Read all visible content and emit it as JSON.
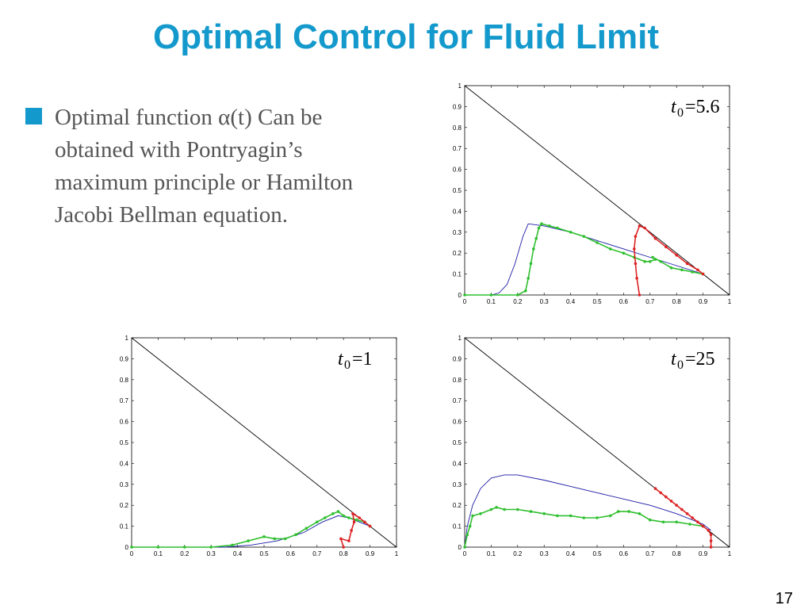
{
  "slide": {
    "title": "Optimal Control for Fluid Limit",
    "page_number": "17",
    "accent_color": "#1499cc"
  },
  "bullets": [
    {
      "text": "Optimal function α(t) Can be obtained with Pontryagin’s maximum principle or Hamilton Jacobi Bellman equation."
    }
  ],
  "chart_data": [
    {
      "type": "line",
      "label_t": "t",
      "label_sub": "0",
      "label_value": "=5.6",
      "xlim": [
        0,
        1
      ],
      "ylim": [
        0,
        1
      ],
      "x_ticks": [
        "0",
        "0.1",
        "0.2",
        "0.3",
        "0.4",
        "0.5",
        "0.6",
        "0.7",
        "0.8",
        "0.9",
        "1"
      ],
      "y_ticks": [
        "0",
        "0.1",
        "0.2",
        "0.3",
        "0.4",
        "0.5",
        "0.6",
        "0.7",
        "0.8",
        "0.9",
        "1"
      ],
      "series": [
        {
          "color": "#000000",
          "style": "line",
          "points": [
            [
              0,
              1
            ],
            [
              1,
              0
            ]
          ]
        },
        {
          "color": "#1a1aa6",
          "style": "line",
          "points": [
            [
              0,
              0
            ],
            [
              0.1,
              0
            ],
            [
              0.13,
              0.01
            ],
            [
              0.16,
              0.05
            ],
            [
              0.19,
              0.15
            ],
            [
              0.22,
              0.28
            ],
            [
              0.24,
              0.34
            ],
            [
              0.3,
              0.33
            ],
            [
              0.4,
              0.3
            ],
            [
              0.5,
              0.26
            ],
            [
              0.6,
              0.22
            ],
            [
              0.7,
              0.18
            ],
            [
              0.8,
              0.14
            ],
            [
              0.9,
              0.1
            ]
          ]
        },
        {
          "color": "#2fbf2f",
          "style": "markers",
          "points": [
            [
              0,
              0
            ],
            [
              0.1,
              0
            ],
            [
              0.2,
              0
            ],
            [
              0.23,
              0.02
            ],
            [
              0.24,
              0.08
            ],
            [
              0.25,
              0.15
            ],
            [
              0.26,
              0.22
            ],
            [
              0.27,
              0.27
            ],
            [
              0.28,
              0.32
            ],
            [
              0.29,
              0.34
            ],
            [
              0.32,
              0.33
            ],
            [
              0.35,
              0.32
            ],
            [
              0.4,
              0.3
            ],
            [
              0.45,
              0.28
            ],
            [
              0.5,
              0.25
            ],
            [
              0.55,
              0.22
            ],
            [
              0.6,
              0.2
            ],
            [
              0.64,
              0.18
            ],
            [
              0.68,
              0.16
            ],
            [
              0.7,
              0.16
            ],
            [
              0.72,
              0.17
            ],
            [
              0.71,
              0.18
            ],
            [
              0.74,
              0.16
            ],
            [
              0.78,
              0.13
            ],
            [
              0.82,
              0.12
            ],
            [
              0.86,
              0.11
            ],
            [
              0.9,
              0.1
            ]
          ]
        },
        {
          "color": "#dd2222",
          "style": "markers",
          "points": [
            [
              0.66,
              0.0
            ],
            [
              0.65,
              0.08
            ],
            [
              0.645,
              0.15
            ],
            [
              0.64,
              0.22
            ],
            [
              0.645,
              0.28
            ],
            [
              0.66,
              0.33
            ],
            [
              0.68,
              0.32
            ],
            [
              0.72,
              0.27
            ],
            [
              0.76,
              0.23
            ],
            [
              0.8,
              0.19
            ],
            [
              0.84,
              0.15
            ],
            [
              0.88,
              0.12
            ],
            [
              0.9,
              0.1
            ]
          ]
        }
      ]
    },
    {
      "type": "line",
      "label_t": "t",
      "label_sub": "0",
      "label_value": "=1",
      "xlim": [
        0,
        1
      ],
      "ylim": [
        0,
        1
      ],
      "x_ticks": [
        "0",
        "0.1",
        "0.2",
        "0.3",
        "0.4",
        "0.5",
        "0.6",
        "0.7",
        "0.8",
        "0.9",
        "1"
      ],
      "y_ticks": [
        "0",
        "0.1",
        "0.2",
        "0.3",
        "0.4",
        "0.5",
        "0.6",
        "0.7",
        "0.8",
        "0.9",
        "1"
      ],
      "series": [
        {
          "color": "#000000",
          "style": "line",
          "points": [
            [
              0,
              1
            ],
            [
              1,
              0
            ]
          ]
        },
        {
          "color": "#1a1aa6",
          "style": "line",
          "points": [
            [
              0,
              0
            ],
            [
              0.35,
              0
            ],
            [
              0.45,
              0.01
            ],
            [
              0.55,
              0.03
            ],
            [
              0.65,
              0.07
            ],
            [
              0.72,
              0.12
            ],
            [
              0.78,
              0.15
            ],
            [
              0.82,
              0.14
            ],
            [
              0.86,
              0.12
            ],
            [
              0.9,
              0.1
            ]
          ]
        },
        {
          "color": "#2fbf2f",
          "style": "markers",
          "points": [
            [
              0,
              0
            ],
            [
              0.1,
              0
            ],
            [
              0.2,
              0
            ],
            [
              0.3,
              0
            ],
            [
              0.38,
              0.01
            ],
            [
              0.44,
              0.03
            ],
            [
              0.5,
              0.05
            ],
            [
              0.54,
              0.04
            ],
            [
              0.58,
              0.04
            ],
            [
              0.62,
              0.06
            ],
            [
              0.66,
              0.09
            ],
            [
              0.7,
              0.12
            ],
            [
              0.73,
              0.14
            ],
            [
              0.76,
              0.16
            ],
            [
              0.78,
              0.17
            ],
            [
              0.8,
              0.15
            ],
            [
              0.82,
              0.14
            ],
            [
              0.85,
              0.13
            ],
            [
              0.88,
              0.12
            ],
            [
              0.9,
              0.1
            ]
          ]
        },
        {
          "color": "#dd2222",
          "style": "markers",
          "points": [
            [
              0.8,
              0.0
            ],
            [
              0.79,
              0.04
            ],
            [
              0.82,
              0.03
            ],
            [
              0.83,
              0.08
            ],
            [
              0.84,
              0.12
            ],
            [
              0.835,
              0.16
            ],
            [
              0.86,
              0.14
            ],
            [
              0.88,
              0.12
            ],
            [
              0.9,
              0.1
            ]
          ]
        }
      ]
    },
    {
      "type": "line",
      "label_t": "t",
      "label_sub": "0",
      "label_value": "=25",
      "xlim": [
        0,
        1
      ],
      "ylim": [
        0,
        1
      ],
      "x_ticks": [
        "0",
        "0.1",
        "0.2",
        "0.3",
        "0.4",
        "0.5",
        "0.6",
        "0.7",
        "0.8",
        "0.9",
        "1"
      ],
      "y_ticks": [
        "0",
        "0.1",
        "0.2",
        "0.3",
        "0.4",
        "0.5",
        "0.6",
        "0.7",
        "0.8",
        "0.9",
        "1"
      ],
      "series": [
        {
          "color": "#000000",
          "style": "line",
          "points": [
            [
              0,
              1
            ],
            [
              1,
              0
            ]
          ]
        },
        {
          "color": "#1a1aa6",
          "style": "line",
          "points": [
            [
              0,
              0
            ],
            [
              0.01,
              0.1
            ],
            [
              0.03,
              0.2
            ],
            [
              0.06,
              0.28
            ],
            [
              0.1,
              0.33
            ],
            [
              0.15,
              0.345
            ],
            [
              0.2,
              0.345
            ],
            [
              0.3,
              0.32
            ],
            [
              0.4,
              0.29
            ],
            [
              0.5,
              0.26
            ],
            [
              0.6,
              0.23
            ],
            [
              0.7,
              0.2
            ],
            [
              0.8,
              0.16
            ],
            [
              0.9,
              0.11
            ],
            [
              0.93,
              0.08
            ]
          ]
        },
        {
          "color": "#2fbf2f",
          "style": "markers",
          "points": [
            [
              0,
              0
            ],
            [
              0.01,
              0.06
            ],
            [
              0.02,
              0.1
            ],
            [
              0.03,
              0.15
            ],
            [
              0.06,
              0.16
            ],
            [
              0.1,
              0.18
            ],
            [
              0.12,
              0.19
            ],
            [
              0.15,
              0.18
            ],
            [
              0.2,
              0.18
            ],
            [
              0.25,
              0.17
            ],
            [
              0.3,
              0.16
            ],
            [
              0.35,
              0.15
            ],
            [
              0.4,
              0.15
            ],
            [
              0.45,
              0.14
            ],
            [
              0.5,
              0.14
            ],
            [
              0.55,
              0.15
            ],
            [
              0.58,
              0.17
            ],
            [
              0.62,
              0.17
            ],
            [
              0.66,
              0.16
            ],
            [
              0.7,
              0.13
            ],
            [
              0.75,
              0.12
            ],
            [
              0.8,
              0.12
            ],
            [
              0.85,
              0.11
            ],
            [
              0.9,
              0.1
            ]
          ]
        },
        {
          "color": "#dd2222",
          "style": "markers",
          "points": [
            [
              0.93,
              0.0
            ],
            [
              0.93,
              0.03
            ],
            [
              0.93,
              0.06
            ],
            [
              0.92,
              0.08
            ],
            [
              0.9,
              0.1
            ],
            [
              0.88,
              0.12
            ],
            [
              0.86,
              0.14
            ],
            [
              0.84,
              0.16
            ],
            [
              0.82,
              0.18
            ],
            [
              0.8,
              0.2
            ],
            [
              0.78,
              0.22
            ],
            [
              0.76,
              0.24
            ],
            [
              0.74,
              0.26
            ],
            [
              0.72,
              0.28
            ]
          ]
        }
      ]
    }
  ]
}
